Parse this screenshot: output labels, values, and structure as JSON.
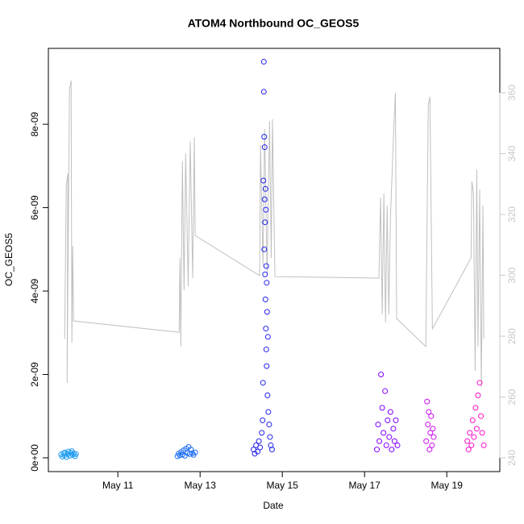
{
  "chart_data": {
    "type": "scatter",
    "title": "ATOM4 Northbound OC_GEOS5",
    "xlabel": "Date",
    "ylabel": "OC_GEOS5",
    "xlim": [
      9.31,
      20.29
    ],
    "xticks": [
      {
        "value": 11,
        "label": "May 11"
      },
      {
        "value": 13,
        "label": "May 13"
      },
      {
        "value": 15,
        "label": "May 15"
      },
      {
        "value": 17,
        "label": "May 17"
      },
      {
        "value": 19,
        "label": "May 19"
      }
    ],
    "ylim": [
      -3.3e-10,
      9.82e-09
    ],
    "yticks": [
      {
        "value": 0,
        "label": "0e+00"
      },
      {
        "value": 2e-09,
        "label": "2e-09"
      },
      {
        "value": 4e-09,
        "label": "4e-09"
      },
      {
        "value": 6e-09,
        "label": "6e-09"
      },
      {
        "value": 8e-09,
        "label": "8e-09"
      }
    ],
    "y2lim": [
      235.5,
      374.6
    ],
    "y2ticks": [
      240,
      260,
      280,
      300,
      320,
      340,
      360
    ],
    "y2color": "#c8c8c8",
    "series": [
      {
        "type": "line",
        "axis": "y2",
        "color": "#c0c0c0",
        "x": [
          9.706,
          9.745,
          9.784,
          9.765,
          9.824,
          9.863,
          9.882,
          9.902,
          9.922,
          12.49,
          12.51,
          12.53,
          12.57,
          12.61,
          12.65,
          12.71,
          12.76,
          12.82,
          12.86,
          12.88,
          14.45,
          14.47,
          14.53,
          14.57,
          14.63,
          14.69,
          14.73,
          14.76,
          14.82,
          17.35,
          17.39,
          17.43,
          17.47,
          17.51,
          17.55,
          17.59,
          17.63,
          17.71,
          17.75,
          17.78,
          18.49,
          18.55,
          18.59,
          18.65,
          19.59,
          19.61,
          19.65,
          19.69,
          19.73,
          19.76,
          19.8,
          19.84,
          19.88,
          19.9
        ],
        "values": [
          279.2,
          329.5,
          333.5,
          264.6,
          361.3,
          364.0,
          277.9,
          309.7,
          285.0,
          281.3,
          305.7,
          276.6,
          337.5,
          295.1,
          340.1,
          296.4,
          344.1,
          299.1,
          345.4,
          313.1,
          299.9,
          342.8,
          303.0,
          348.1,
          300.4,
          350.7,
          305.7,
          351.3,
          299.6,
          299.1,
          325.6,
          287.2,
          326.9,
          284.5,
          322.9,
          287.2,
          318.9,
          348.1,
          360.0,
          285.8,
          276.6,
          356.0,
          358.7,
          282.4,
          305.7,
          330.9,
          326.9,
          268.6,
          334.8,
          276.6,
          328.2,
          263.3,
          322.9,
          279.2
        ]
      },
      {
        "type": "points",
        "color": "#1e9bf0",
        "x": [
          9.62,
          9.65,
          9.68,
          9.7,
          9.72,
          9.75,
          9.78,
          9.8,
          9.83,
          9.86,
          9.88,
          9.9,
          9.93,
          9.96,
          9.98
        ],
        "values": [
          8e-11,
          3e-11,
          1.1e-10,
          6e-11,
          1.3e-10,
          2e-11,
          9e-11,
          1.5e-10,
          5e-11,
          1.2e-10,
          1.6e-10,
          7e-11,
          1e-10,
          4e-11,
          9e-11
        ]
      },
      {
        "type": "points",
        "color": "#1a6cf5",
        "x": [
          12.45,
          12.48,
          12.51,
          12.54,
          12.57,
          12.6,
          12.63,
          12.66,
          12.69,
          12.72,
          12.75,
          12.78,
          12.81,
          12.84,
          12.88
        ],
        "values": [
          4e-11,
          1e-10,
          6e-11,
          1.4e-10,
          8e-11,
          1.8e-10,
          5e-11,
          2.2e-10,
          1.2e-10,
          2.6e-10,
          9e-11,
          2e-10,
          1.1e-10,
          7e-11,
          1.3e-10
        ]
      },
      {
        "type": "points",
        "color": "#2222ee",
        "x": [
          14.3,
          14.33,
          14.36,
          14.4,
          14.43,
          14.46,
          14.5,
          14.52,
          14.53,
          14.54,
          14.55,
          14.55,
          14.56,
          14.56,
          14.57,
          14.57,
          14.58,
          14.58,
          14.59,
          14.59,
          14.6,
          14.6,
          14.61,
          14.61,
          14.62,
          14.62,
          14.63,
          14.64,
          14.65,
          14.66,
          14.68,
          14.7,
          14.72,
          14.75
        ],
        "values": [
          2e-10,
          1e-10,
          3e-10,
          1.5e-10,
          4e-10,
          2.5e-10,
          6e-10,
          9e-10,
          1.8e-09,
          6.65e-09,
          9.5e-09,
          8.78e-09,
          7.7e-09,
          5e-09,
          7.45e-09,
          6.2e-09,
          5.65e-09,
          4.4e-09,
          6.45e-09,
          3.8e-09,
          5.95e-09,
          3.1e-09,
          4.6e-09,
          2.6e-09,
          4.2e-09,
          2.2e-09,
          3.5e-09,
          1.5e-09,
          2.9e-09,
          1.1e-09,
          8e-10,
          5e-10,
          3e-10,
          2e-10
        ]
      },
      {
        "type": "points",
        "color": "#7f00ff",
        "x": [
          17.3,
          17.33,
          17.36,
          17.4,
          17.43,
          17.46,
          17.5,
          17.53,
          17.56,
          17.6,
          17.63,
          17.66,
          17.7,
          17.73,
          17.76,
          17.8
        ],
        "values": [
          2e-10,
          8e-10,
          4e-10,
          2e-09,
          1.2e-09,
          6e-10,
          1.6e-09,
          3e-10,
          9e-10,
          5e-10,
          1.1e-09,
          2e-10,
          7e-10,
          4e-10,
          9e-10,
          3e-10
        ]
      },
      {
        "type": "points",
        "color": "#cc10f0",
        "x": [
          18.5,
          18.52,
          18.54,
          18.56,
          18.58,
          18.6,
          18.62,
          18.64,
          18.66,
          18.68
        ],
        "values": [
          4e-10,
          1.35e-09,
          8e-10,
          1.1e-09,
          2e-10,
          6e-10,
          1e-09,
          3e-10,
          7e-10,
          5e-10
        ]
      },
      {
        "type": "points",
        "color": "#ff10c8",
        "x": [
          19.5,
          19.53,
          19.56,
          19.6,
          19.63,
          19.66,
          19.7,
          19.73,
          19.76,
          19.8,
          19.83,
          19.86,
          19.9
        ],
        "values": [
          4e-10,
          2e-10,
          6e-10,
          3e-10,
          9e-10,
          5e-10,
          1.2e-09,
          7e-10,
          1.5e-09,
          1.8e-09,
          1e-09,
          6e-10,
          3e-10
        ]
      }
    ]
  }
}
